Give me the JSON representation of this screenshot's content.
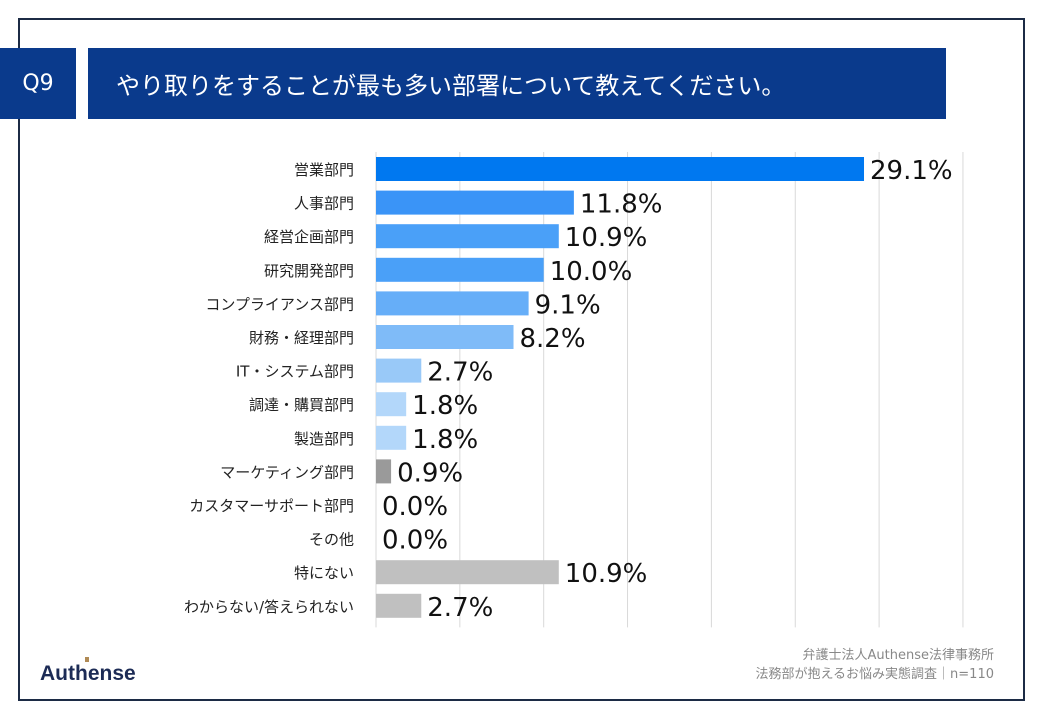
{
  "header": {
    "question": "Q9",
    "title": "やり取りをすることが最も多い部署について教えてください。"
  },
  "footer": {
    "line1": "弁護士法人Authense法律事務所",
    "line2": "法務部が抱えるお悩み実態調査｜n=110",
    "logo": "Authense"
  },
  "chart_data": {
    "type": "bar",
    "orientation": "horizontal",
    "xlim": [
      0,
      35
    ],
    "grid": true,
    "categories": [
      "営業部門",
      "人事部門",
      "経営企画部門",
      "研究開発部門",
      "コンプライアンス部門",
      "財務・経理部門",
      "IT・システム部門",
      "調達・購買部門",
      "製造部門",
      "マーケティング部門",
      "カスタマーサポート部門",
      "その他",
      "特にない",
      "わからない/答えられない"
    ],
    "values": [
      29.1,
      11.8,
      10.9,
      10.0,
      9.1,
      8.2,
      2.7,
      1.8,
      1.8,
      0.9,
      0.0,
      0.0,
      10.9,
      2.7
    ],
    "labels": [
      "29.1%",
      "11.8%",
      "10.9%",
      "10.0%",
      "9.1%",
      "8.2%",
      "2.7%",
      "1.8%",
      "1.8%",
      "0.9%",
      "0.0%",
      "0.0%",
      "10.9%",
      "2.7%"
    ],
    "colors": [
      "#0078f0",
      "#3a94f7",
      "#4aa0f8",
      "#4aa0f8",
      "#66aef8",
      "#7fbbf8",
      "#99c9f8",
      "#b3d7fa",
      "#b3d7fa",
      "#9a9a9a",
      "#c0c0c0",
      "#c0c0c0",
      "#c0c0c0",
      "#c0c0c0"
    ]
  }
}
